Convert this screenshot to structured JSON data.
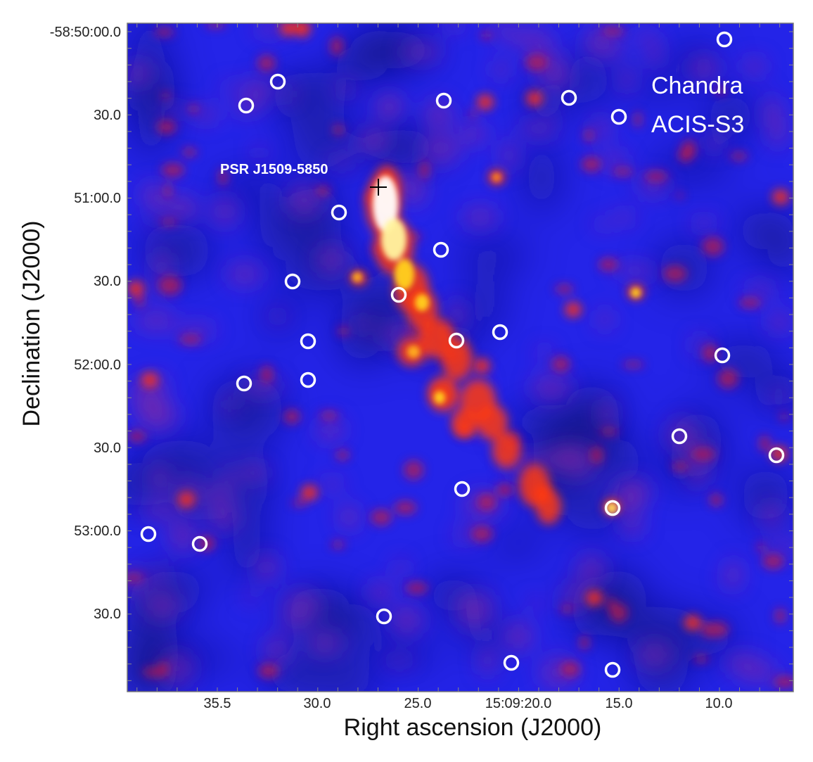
{
  "image": {
    "description_colormap": [
      "#0b0a55",
      "#1e1ee6",
      "#6a2cc4",
      "#c8143a",
      "#ff3a10",
      "#ffd21e",
      "#ffffff"
    ],
    "circle_color": "#ffffff",
    "marker_color": "#000000"
  },
  "overlay": {
    "telescope_line1": "Chandra",
    "telescope_line2": "ACIS-S3",
    "pulsar_label": "PSR J1509-5850"
  },
  "axes": {
    "x_title": "Right ascension (J2000)",
    "y_title": "Declination (J2000)",
    "x_ticks": [
      "35.5",
      "30.0",
      "25.0",
      "15:09:20.0",
      "15.0",
      "10.0"
    ],
    "y_ticks": [
      "-58:50:00.0",
      "30.0",
      "51:00.0",
      "30.0",
      "52:00.0",
      "30.0",
      "53:00.0",
      "30.0"
    ]
  }
}
